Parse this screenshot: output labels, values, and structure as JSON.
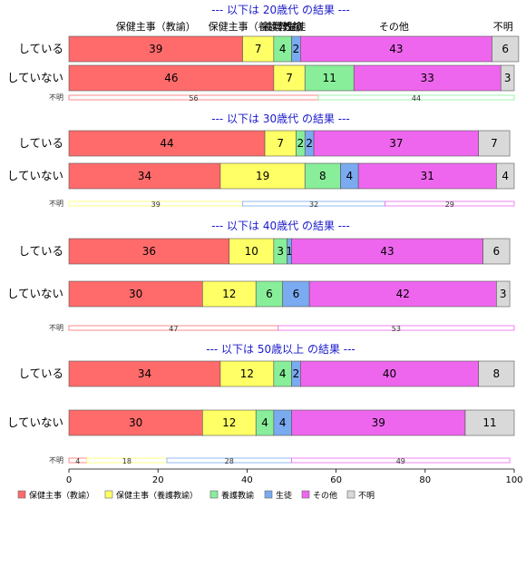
{
  "chart_data": {
    "type": "bar",
    "orientation": "horizontal-stacked-percent",
    "xlim": [
      0,
      100
    ],
    "xticks": [
      0,
      20,
      40,
      60,
      80,
      100
    ],
    "legend": {
      "position": "bottom-left",
      "entries": [
        "保健主事（教諭）",
        "保健主事（養護教諭）",
        "養護教諭",
        "生徒",
        "その他",
        "不明"
      ]
    },
    "colors": [
      "#ff6b6b",
      "#ffff66",
      "#88ee99",
      "#7aaaf0",
      "#ee66ee",
      "#d9d9d9"
    ],
    "top_labels": {
      "items": [
        {
          "text": "保健主事（教諭）",
          "at": 19.5
        },
        {
          "text": "保健主事（養護教諭）",
          "at": 42.5
        },
        {
          "text": "養護教諭",
          "at": 48
        },
        {
          "text": "生徒",
          "at": 51
        },
        {
          "text": "その他",
          "at": 73
        },
        {
          "text": "不明",
          "at": 97.5
        }
      ]
    },
    "groups": [
      {
        "title": "--- 以下は 20歳代 の結果 ---",
        "rows": [
          {
            "label": "している",
            "values": [
              39,
              7,
              4,
              2,
              43,
              6
            ]
          },
          {
            "label": "していない",
            "values": [
              46,
              7,
              11,
              0,
              33,
              3
            ]
          }
        ],
        "unknown": {
          "label": "不明",
          "values": [
            56,
            0,
            44,
            0,
            0,
            0
          ]
        }
      },
      {
        "title": "--- 以下は 30歳代 の結果 ---",
        "rows": [
          {
            "label": "している",
            "values": [
              44,
              7,
              2,
              2,
              37,
              7
            ]
          },
          {
            "label": "していない",
            "values": [
              34,
              19,
              8,
              4,
              31,
              4
            ]
          }
        ],
        "unknown": {
          "label": "不明",
          "values": [
            0,
            39,
            0,
            32,
            29,
            0
          ]
        }
      },
      {
        "title": "--- 以下は 40歳代 の結果 ---",
        "rows": [
          {
            "label": "している",
            "values": [
              36,
              10,
              3,
              1,
              43,
              6
            ]
          },
          {
            "label": "していない",
            "values": [
              30,
              12,
              6,
              6,
              42,
              3
            ]
          }
        ],
        "unknown": {
          "label": "不明",
          "values": [
            47,
            0,
            0,
            0,
            53,
            0
          ]
        }
      },
      {
        "title": "--- 以下は 50歳以上 の結果 ---",
        "rows": [
          {
            "label": "している",
            "values": [
              34,
              12,
              4,
              2,
              40,
              8
            ]
          },
          {
            "label": "していない",
            "values": [
              30,
              12,
              4,
              4,
              39,
              11
            ]
          }
        ],
        "unknown": {
          "label": "不明",
          "values": [
            4,
            18,
            0,
            28,
            49,
            0
          ]
        }
      }
    ]
  }
}
